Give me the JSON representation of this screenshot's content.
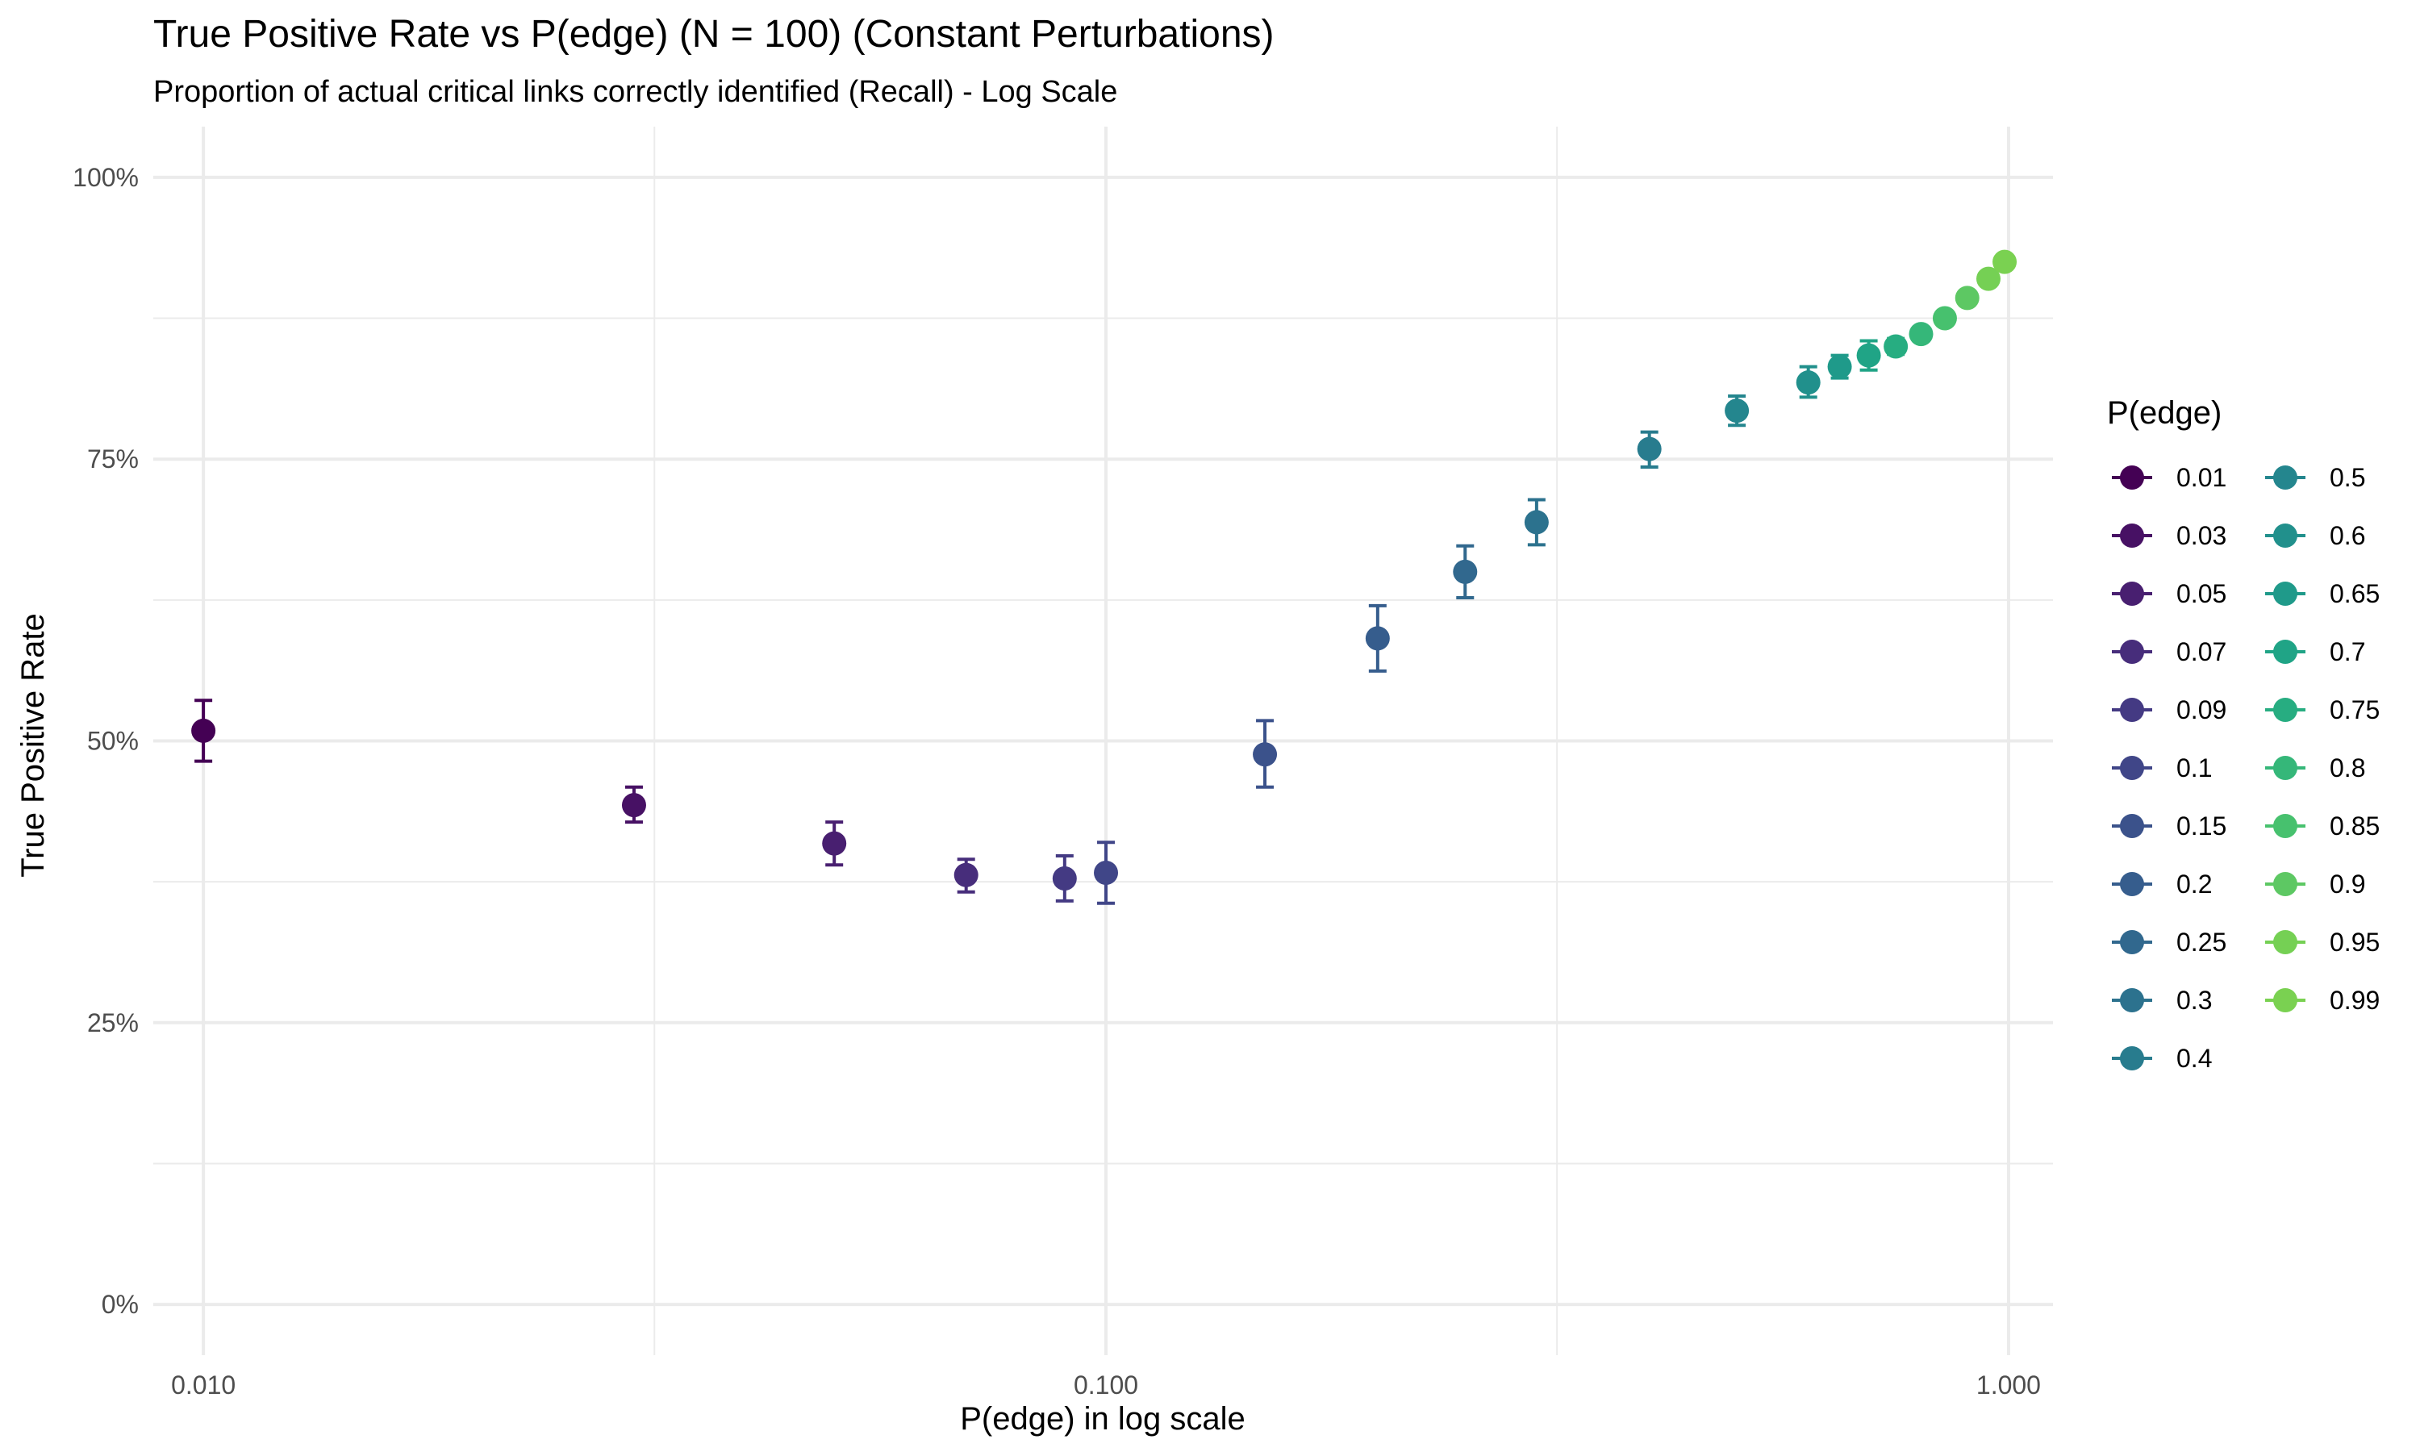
{
  "chart_data": {
    "type": "scatter",
    "title": "True Positive Rate vs P(edge) (N = 100) (Constant Perturbations)",
    "subtitle": "Proportion of actual critical links correctly identified (Recall) - Log Scale",
    "xlabel": "P(edge) in log scale",
    "ylabel": "True Positive Rate",
    "x_scale": "log10",
    "xlim": [
      0.0088,
      1.12
    ],
    "ylim": [
      -0.045,
      1.045
    ],
    "x_ticks": [
      0.01,
      0.1,
      1.0
    ],
    "x_tick_labels": [
      "0.010",
      "0.100",
      "1.000"
    ],
    "x_minor_ticks": [
      0.0316,
      0.316
    ],
    "y_ticks": [
      0,
      0.25,
      0.5,
      0.75,
      1.0
    ],
    "y_tick_labels": [
      "0%",
      "25%",
      "50%",
      "75%",
      "100%"
    ],
    "y_minor_ticks": [
      0.125,
      0.375,
      0.625,
      0.875
    ],
    "grid": true,
    "legend_title": "P(edge)",
    "legend_position": "right",
    "legend_columns": 2,
    "series": [
      {
        "name": "0.01",
        "x": 0.01,
        "y": 0.509,
        "ymin": 0.482,
        "ymax": 0.536,
        "color": "#440154"
      },
      {
        "name": "0.03",
        "x": 0.03,
        "y": 0.443,
        "ymin": 0.428,
        "ymax": 0.459,
        "color": "#471164"
      },
      {
        "name": "0.05",
        "x": 0.05,
        "y": 0.409,
        "ymin": 0.39,
        "ymax": 0.428,
        "color": "#481F70"
      },
      {
        "name": "0.07",
        "x": 0.07,
        "y": 0.381,
        "ymin": 0.366,
        "ymax": 0.395,
        "color": "#472D7B"
      },
      {
        "name": "0.09",
        "x": 0.09,
        "y": 0.378,
        "ymin": 0.358,
        "ymax": 0.398,
        "color": "#443A83"
      },
      {
        "name": "0.1",
        "x": 0.1,
        "y": 0.383,
        "ymin": 0.356,
        "ymax": 0.41,
        "color": "#404688"
      },
      {
        "name": "0.15",
        "x": 0.15,
        "y": 0.488,
        "ymin": 0.459,
        "ymax": 0.518,
        "color": "#3B528B"
      },
      {
        "name": "0.2",
        "x": 0.2,
        "y": 0.591,
        "ymin": 0.562,
        "ymax": 0.62,
        "color": "#365D8D"
      },
      {
        "name": "0.25",
        "x": 0.25,
        "y": 0.65,
        "ymin": 0.627,
        "ymax": 0.673,
        "color": "#31688E"
      },
      {
        "name": "0.3",
        "x": 0.3,
        "y": 0.694,
        "ymin": 0.674,
        "ymax": 0.714,
        "color": "#2C728E"
      },
      {
        "name": "0.4",
        "x": 0.4,
        "y": 0.759,
        "ymin": 0.743,
        "ymax": 0.774,
        "color": "#287C8E"
      },
      {
        "name": "0.5",
        "x": 0.5,
        "y": 0.793,
        "ymin": 0.78,
        "ymax": 0.806,
        "color": "#24868E"
      },
      {
        "name": "0.6",
        "x": 0.6,
        "y": 0.818,
        "ymin": 0.805,
        "ymax": 0.832,
        "color": "#21908C"
      },
      {
        "name": "0.65",
        "x": 0.65,
        "y": 0.832,
        "ymin": 0.822,
        "ymax": 0.842,
        "color": "#1F9A8A"
      },
      {
        "name": "0.7",
        "x": 0.7,
        "y": 0.842,
        "ymin": 0.829,
        "ymax": 0.855,
        "color": "#20A486"
      },
      {
        "name": "0.75",
        "x": 0.75,
        "y": 0.85,
        "ymin": 0.843,
        "ymax": 0.857,
        "color": "#27AD81"
      },
      {
        "name": "0.8",
        "x": 0.8,
        "y": 0.861,
        "ymin": 0.857,
        "ymax": 0.865,
        "color": "#35B779"
      },
      {
        "name": "0.85",
        "x": 0.85,
        "y": 0.875,
        "ymin": 0.872,
        "ymax": 0.878,
        "color": "#47C16E"
      },
      {
        "name": "0.9",
        "x": 0.9,
        "y": 0.893,
        "ymin": 0.891,
        "ymax": 0.895,
        "color": "#5DC863"
      },
      {
        "name": "0.95",
        "x": 0.95,
        "y": 0.91,
        "ymin": 0.908,
        "ymax": 0.912,
        "color": "#75D054"
      },
      {
        "name": "0.99",
        "x": 0.99,
        "y": 0.925,
        "ymin": 0.924,
        "ymax": 0.926,
        "color": "#7AD151"
      }
    ]
  }
}
